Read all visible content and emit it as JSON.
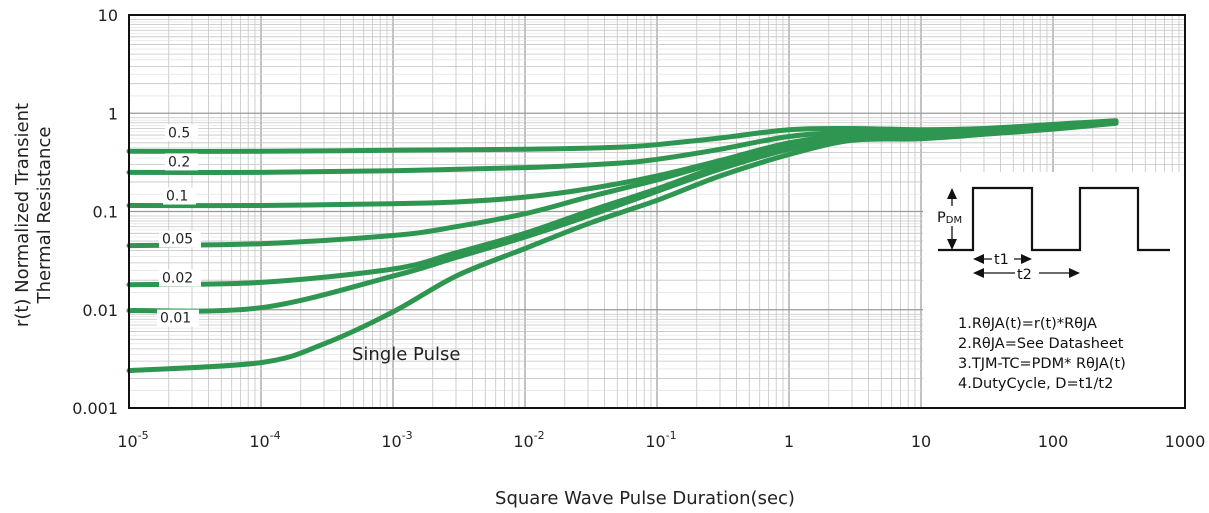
{
  "chart_data": {
    "type": "line",
    "xlabel": "Square Wave Pulse Duration(sec)",
    "ylabel_lines": [
      "r(t) Normalized Transient",
      "Thermal Resistance"
    ],
    "xscale": "log",
    "yscale": "log",
    "xlim": [
      1e-05,
      1000
    ],
    "ylim": [
      0.001,
      10
    ],
    "grid": true,
    "x_ticks": [
      {
        "base": "10",
        "exp": "-5"
      },
      {
        "base": "10",
        "exp": "-4"
      },
      {
        "base": "10",
        "exp": "-3"
      },
      {
        "base": "10",
        "exp": "-2"
      },
      {
        "base": "10",
        "exp": "-1"
      },
      {
        "base": "1",
        "exp": ""
      },
      {
        "base": "10",
        "exp": ""
      },
      {
        "base": "100",
        "exp": ""
      },
      {
        "base": "1000",
        "exp": ""
      }
    ],
    "y_ticks": [
      "10",
      "1",
      "0.1",
      "0.01",
      "0.001"
    ],
    "line_color": "#2e9650",
    "series": [
      {
        "name": "0.5",
        "x": [
          1e-05,
          0.0001,
          0.001,
          0.01,
          0.05,
          0.1,
          0.3,
          1,
          3,
          10,
          30,
          100,
          300
        ],
        "y": [
          0.41,
          0.41,
          0.42,
          0.43,
          0.45,
          0.48,
          0.56,
          0.68,
          0.7,
          0.68,
          0.7,
          0.77,
          0.84
        ]
      },
      {
        "name": "0.2",
        "x": [
          1e-05,
          0.0001,
          0.001,
          0.01,
          0.05,
          0.1,
          0.3,
          1,
          3,
          10,
          30,
          100,
          300
        ],
        "y": [
          0.25,
          0.25,
          0.26,
          0.28,
          0.31,
          0.34,
          0.43,
          0.58,
          0.64,
          0.62,
          0.66,
          0.74,
          0.82
        ]
      },
      {
        "name": "0.1",
        "x": [
          1e-05,
          0.0001,
          0.001,
          0.003,
          0.01,
          0.03,
          0.1,
          0.3,
          1,
          3,
          10,
          30,
          100,
          300
        ],
        "y": [
          0.115,
          0.115,
          0.12,
          0.125,
          0.14,
          0.17,
          0.23,
          0.33,
          0.5,
          0.6,
          0.6,
          0.65,
          0.73,
          0.82
        ]
      },
      {
        "name": "0.05",
        "x": [
          1e-05,
          0.0001,
          0.001,
          0.003,
          0.01,
          0.03,
          0.1,
          0.3,
          1,
          3,
          10,
          30,
          100,
          300
        ],
        "y": [
          0.045,
          0.047,
          0.057,
          0.07,
          0.095,
          0.14,
          0.21,
          0.32,
          0.48,
          0.58,
          0.58,
          0.64,
          0.72,
          0.81
        ]
      },
      {
        "name": "0.02",
        "x": [
          1e-05,
          0.0001,
          0.001,
          0.003,
          0.01,
          0.03,
          0.1,
          0.3,
          1,
          3,
          10,
          30,
          100,
          300
        ],
        "y": [
          0.018,
          0.019,
          0.026,
          0.038,
          0.06,
          0.1,
          0.17,
          0.29,
          0.45,
          0.56,
          0.57,
          0.63,
          0.71,
          0.8
        ]
      },
      {
        "name": "0.01",
        "x": [
          1e-05,
          0.0001,
          0.001,
          0.003,
          0.01,
          0.03,
          0.1,
          0.3,
          1,
          3,
          10,
          30,
          100,
          300
        ],
        "y": [
          0.0098,
          0.0105,
          0.022,
          0.034,
          0.055,
          0.09,
          0.16,
          0.27,
          0.43,
          0.55,
          0.56,
          0.62,
          0.7,
          0.8
        ]
      },
      {
        "name": "Single Pulse",
        "x": [
          1e-05,
          0.0001,
          0.0003,
          0.001,
          0.003,
          0.01,
          0.03,
          0.1,
          0.3,
          1,
          3,
          10,
          30,
          100,
          300
        ],
        "y": [
          0.0024,
          0.0029,
          0.0045,
          0.0095,
          0.022,
          0.042,
          0.075,
          0.13,
          0.23,
          0.38,
          0.53,
          0.55,
          0.61,
          0.69,
          0.79
        ]
      }
    ],
    "curve_labels": [
      "0.5",
      "0.2",
      "0.1",
      "0.05",
      "0.02",
      "0.01"
    ],
    "single_pulse_label": "Single Pulse",
    "inset": {
      "pdm_label": "PDM",
      "t1_label": "t1",
      "t2_label": "t2",
      "notes": [
        "1.RθJA(t)=r(t)*RθJA",
        "2.RθJA=See Datasheet",
        "3.TJM-TC=PDM* RθJA(t)",
        "4.DutyCycle, D=t1/t2"
      ]
    }
  }
}
